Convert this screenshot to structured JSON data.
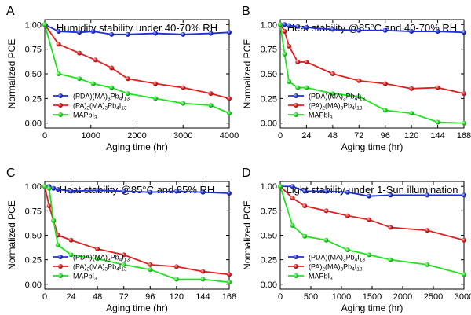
{
  "colors": {
    "series1": "#1f2fd6",
    "series2": "#e02020",
    "series3": "#22e022"
  },
  "chart_data": [
    {
      "type": "line",
      "panel_letter": "A",
      "title": "Humidity stability under 40-70% RH",
      "xlabel": "Aging time (hr)",
      "ylabel": "Normalized PCE",
      "xlim": [
        0,
        4000
      ],
      "ylim": [
        -0.05,
        1.05
      ],
      "xticks": [
        0,
        1000,
        2000,
        3000,
        4000
      ],
      "yticks": [
        0.0,
        0.25,
        0.5,
        0.75,
        1.0
      ],
      "legend": "bottom-left",
      "grid": false,
      "series": [
        {
          "name": "(PDA)(MA)3Pb4I13",
          "color": "#1f2fd6",
          "x": [
            0,
            300,
            750,
            1050,
            1450,
            1800,
            2400,
            3000,
            3600,
            4000
          ],
          "y": [
            1.0,
            0.93,
            0.92,
            0.93,
            0.9,
            0.9,
            0.91,
            0.9,
            0.91,
            0.92
          ]
        },
        {
          "name": "(PA)2(MA)3Pb4I13",
          "color": "#e02020",
          "x": [
            0,
            300,
            750,
            1100,
            1450,
            1800,
            2400,
            3000,
            3600,
            4000
          ],
          "y": [
            1.0,
            0.8,
            0.71,
            0.64,
            0.56,
            0.45,
            0.4,
            0.36,
            0.3,
            0.25
          ]
        },
        {
          "name": "MAPbI3",
          "color": "#22e022",
          "x": [
            0,
            300,
            750,
            1050,
            1450,
            1800,
            2400,
            3000,
            3600,
            4000
          ],
          "y": [
            1.0,
            0.5,
            0.45,
            0.4,
            0.36,
            0.3,
            0.25,
            0.2,
            0.18,
            0.1
          ]
        }
      ],
      "legend_entries": [
        {
          "main": "(PDA)(MA)",
          "subs": [
            "3",
            "Pb",
            "4",
            "I",
            "13"
          ]
        },
        {
          "main": "(PA)",
          "subs": [
            "2",
            "(MA)",
            "3",
            "Pb",
            "4",
            "I",
            "13"
          ]
        },
        {
          "main": "MAPbI",
          "subs": [
            "3"
          ]
        }
      ]
    },
    {
      "type": "line",
      "panel_letter": "B",
      "title": "Heat stability @85°C and 40-70% RH",
      "xlabel": "Aging time (hr)",
      "ylabel": "Normalized PCE",
      "xlim": [
        0,
        168
      ],
      "ylim": [
        -0.05,
        1.05
      ],
      "xticks": [
        0,
        24,
        48,
        72,
        96,
        120,
        144,
        168
      ],
      "yticks": [
        0.0,
        0.25,
        0.5,
        0.75,
        1.0
      ],
      "legend": "bottom-left",
      "grid": false,
      "series": [
        {
          "name": "(PDA)(MA)3Pb4I13",
          "color": "#1f2fd6",
          "x": [
            0,
            4,
            8,
            16,
            24,
            48,
            72,
            96,
            120,
            144,
            168
          ],
          "y": [
            1.0,
            1.0,
            0.99,
            0.98,
            0.97,
            0.95,
            0.94,
            0.94,
            0.93,
            0.93,
            0.92
          ]
        },
        {
          "name": "(PA)2(MA)3Pb4I13",
          "color": "#e02020",
          "x": [
            0,
            4,
            8,
            16,
            24,
            48,
            72,
            96,
            120,
            144,
            168
          ],
          "y": [
            1.0,
            0.93,
            0.78,
            0.62,
            0.62,
            0.5,
            0.43,
            0.4,
            0.35,
            0.36,
            0.3
          ]
        },
        {
          "name": "MAPbI3",
          "color": "#22e022",
          "x": [
            0,
            4,
            8,
            16,
            24,
            48,
            72,
            96,
            120,
            144,
            168
          ],
          "y": [
            1.0,
            0.7,
            0.42,
            0.36,
            0.36,
            0.3,
            0.27,
            0.13,
            0.1,
            0.01,
            0.0
          ]
        }
      ],
      "legend_entries": [
        {
          "main": "(PDA)(MA)",
          "subs": [
            "3",
            "Pb",
            "4",
            "I",
            "13"
          ]
        },
        {
          "main": "(PA)",
          "subs": [
            "2",
            "(MA)",
            "3",
            "Pb",
            "4",
            "I",
            "13"
          ]
        },
        {
          "main": "MAPbI",
          "subs": [
            "3"
          ]
        }
      ]
    },
    {
      "type": "line",
      "panel_letter": "C",
      "title": "Heat stability @85°C and 85% RH",
      "xlabel": "Aging time (hr)",
      "ylabel": "Normalized PCE",
      "xlim": [
        0,
        168
      ],
      "ylim": [
        -0.05,
        1.05
      ],
      "xticks": [
        0,
        24,
        48,
        72,
        96,
        120,
        144,
        168
      ],
      "yticks": [
        0.0,
        0.25,
        0.5,
        0.75,
        1.0
      ],
      "legend": "bottom-left",
      "grid": false,
      "series": [
        {
          "name": "(PDA)(MA)3Pb4I13",
          "color": "#1f2fd6",
          "x": [
            0,
            4,
            8,
            12,
            24,
            48,
            72,
            96,
            120,
            144,
            168
          ],
          "y": [
            1.0,
            1.0,
            0.98,
            0.97,
            0.95,
            0.96,
            0.95,
            0.94,
            0.95,
            0.94,
            0.93
          ]
        },
        {
          "name": "(PA)2(MA)3Pb4I13",
          "color": "#e02020",
          "x": [
            0,
            4,
            8,
            12,
            24,
            48,
            72,
            96,
            120,
            144,
            168
          ],
          "y": [
            1.0,
            0.8,
            0.65,
            0.5,
            0.45,
            0.36,
            0.3,
            0.2,
            0.18,
            0.13,
            0.1
          ]
        },
        {
          "name": "MAPbI3",
          "color": "#22e022",
          "x": [
            0,
            4,
            8,
            12,
            24,
            48,
            72,
            96,
            120,
            144,
            168
          ],
          "y": [
            1.0,
            0.98,
            0.65,
            0.4,
            0.3,
            0.26,
            0.2,
            0.15,
            0.05,
            0.05,
            0.02
          ]
        }
      ],
      "legend_entries": [
        {
          "main": "(PDA)(MA)",
          "subs": [
            "3",
            "Pb",
            "4",
            "I",
            "13"
          ]
        },
        {
          "main": "(PA)",
          "subs": [
            "2",
            "(MA)",
            "3",
            "Pb",
            "4",
            "I",
            "13"
          ]
        },
        {
          "main": "MAPbI",
          "subs": [
            "3"
          ]
        }
      ]
    },
    {
      "type": "line",
      "panel_letter": "D",
      "title": "Light stability under 1-Sun illumination",
      "xlabel": "Aging time (hr)",
      "ylabel": "Normalized PCE",
      "xlim": [
        0,
        3000
      ],
      "ylim": [
        -0.05,
        1.05
      ],
      "xticks": [
        0,
        500,
        1000,
        1500,
        2000,
        2500,
        3000
      ],
      "yticks": [
        0.0,
        0.25,
        0.5,
        0.75,
        1.0
      ],
      "legend": "bottom-left",
      "grid": false,
      "series": [
        {
          "name": "(PDA)(MA)3Pb4I13",
          "color": "#1f2fd6",
          "x": [
            0,
            200,
            400,
            750,
            1100,
            1450,
            1800,
            2400,
            3000
          ],
          "y": [
            1.0,
            1.0,
            0.95,
            0.95,
            0.94,
            0.9,
            0.91,
            0.91,
            0.91
          ]
        },
        {
          "name": "(PA)2(MA)3Pb4I13",
          "color": "#e02020",
          "x": [
            0,
            200,
            400,
            750,
            1100,
            1450,
            1800,
            2400,
            3000
          ],
          "y": [
            1.0,
            0.88,
            0.8,
            0.75,
            0.7,
            0.66,
            0.58,
            0.55,
            0.45
          ]
        },
        {
          "name": "MAPbI3",
          "color": "#22e022",
          "x": [
            0,
            200,
            400,
            750,
            1100,
            1450,
            1800,
            2400,
            3000
          ],
          "y": [
            1.0,
            0.6,
            0.49,
            0.45,
            0.35,
            0.3,
            0.25,
            0.2,
            0.1
          ]
        }
      ],
      "legend_entries": [
        {
          "main": "(PDA)(MA)",
          "subs": [
            "3",
            "Pb",
            "4",
            "I",
            "13"
          ]
        },
        {
          "main": "(PA)",
          "subs": [
            "2",
            "(MA)",
            "3",
            "Pb",
            "4",
            "I",
            "13"
          ]
        },
        {
          "main": "MAPbI",
          "subs": [
            "3"
          ]
        }
      ]
    }
  ]
}
